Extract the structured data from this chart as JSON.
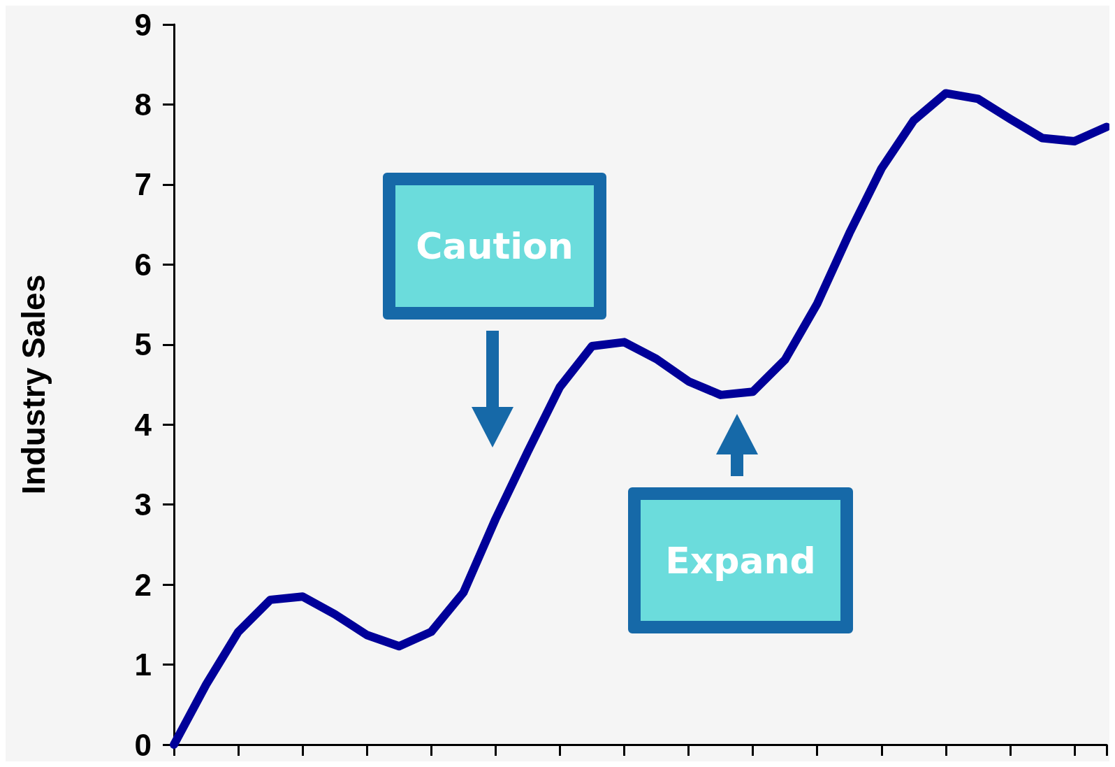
{
  "chart_data": {
    "type": "line",
    "ylabel": "Industry Sales",
    "color": "#000099",
    "categories": [
      null,
      null,
      null,
      null,
      null,
      null,
      null,
      null,
      null,
      null,
      null,
      null,
      null,
      null,
      null,
      null,
      null,
      null,
      null,
      null,
      null,
      null,
      null,
      null,
      null,
      null,
      null,
      null,
      null,
      null
    ],
    "values": [
      0,
      0.75,
      1.41,
      1.81,
      1.85,
      1.63,
      1.37,
      1.23,
      1.41,
      1.9,
      2.82,
      3.66,
      4.47,
      4.98,
      5.03,
      4.82,
      4.54,
      4.37,
      4.41,
      4.81,
      5.51,
      6.39,
      7.2,
      7.8,
      8.14,
      8.07,
      7.82,
      7.58,
      7.54,
      7.72
    ],
    "ylim": [
      0,
      9
    ],
    "yticks": [
      0,
      1,
      2,
      3,
      4,
      5,
      6,
      7,
      8,
      9
    ],
    "tick_labels": "y",
    "grid": false,
    "line_style": "solid",
    "annotations": [
      "Caution",
      "Expand"
    ]
  }
}
